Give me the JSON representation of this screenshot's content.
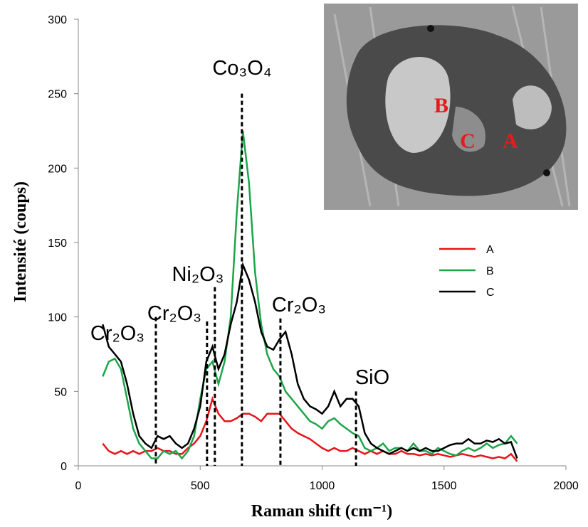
{
  "chart_data": {
    "type": "line",
    "xlabel": "Raman shift (cm⁻¹)",
    "ylabel": "Intensité (coups)",
    "xlim": [
      0,
      2000
    ],
    "xticks": [
      0,
      500,
      1000,
      1500,
      2000
    ],
    "ylim": [
      0,
      300
    ],
    "yticks": [
      0,
      50,
      100,
      150,
      200,
      250,
      300
    ],
    "legend": "right",
    "x": [
      100,
      125,
      150,
      175,
      200,
      225,
      250,
      275,
      300,
      325,
      350,
      375,
      400,
      425,
      450,
      475,
      500,
      525,
      550,
      575,
      600,
      625,
      650,
      675,
      700,
      725,
      750,
      775,
      800,
      825,
      850,
      875,
      900,
      925,
      950,
      975,
      1000,
      1025,
      1050,
      1075,
      1100,
      1125,
      1150,
      1175,
      1200,
      1225,
      1250,
      1275,
      1300,
      1325,
      1350,
      1375,
      1400,
      1425,
      1450,
      1475,
      1500,
      1525,
      1550,
      1575,
      1600,
      1625,
      1650,
      1675,
      1700,
      1725,
      1750,
      1775,
      1800
    ],
    "series": [
      {
        "name": "A",
        "color": "#e8141b",
        "values": [
          15,
          10,
          8,
          10,
          8,
          10,
          8,
          10,
          10,
          12,
          10,
          10,
          8,
          8,
          12,
          15,
          20,
          30,
          45,
          35,
          30,
          30,
          32,
          35,
          35,
          33,
          30,
          35,
          35,
          35,
          30,
          25,
          22,
          20,
          18,
          15,
          12,
          10,
          12,
          10,
          10,
          12,
          10,
          8,
          10,
          8,
          10,
          8,
          8,
          10,
          8,
          8,
          7,
          8,
          7,
          8,
          7,
          6,
          7,
          8,
          7,
          6,
          7,
          6,
          5,
          6,
          5,
          8,
          3
        ]
      },
      {
        "name": "B",
        "color": "#1ea44a",
        "values": [
          60,
          70,
          72,
          65,
          45,
          25,
          15,
          10,
          5,
          5,
          10,
          8,
          10,
          5,
          10,
          20,
          45,
          65,
          70,
          55,
          70,
          100,
          170,
          225,
          190,
          130,
          95,
          75,
          65,
          60,
          50,
          45,
          40,
          35,
          30,
          28,
          25,
          30,
          32,
          28,
          25,
          22,
          20,
          12,
          10,
          12,
          15,
          10,
          12,
          12,
          10,
          15,
          10,
          10,
          8,
          12,
          10,
          8,
          7,
          10,
          12,
          10,
          12,
          15,
          12,
          14,
          15,
          20,
          15
        ]
      },
      {
        "name": "C",
        "color": "#000000",
        "values": [
          95,
          80,
          75,
          70,
          55,
          35,
          20,
          15,
          12,
          20,
          18,
          20,
          15,
          12,
          15,
          25,
          40,
          70,
          80,
          65,
          75,
          95,
          110,
          135,
          125,
          110,
          90,
          80,
          78,
          85,
          90,
          75,
          55,
          45,
          40,
          38,
          35,
          40,
          50,
          40,
          45,
          45,
          40,
          22,
          15,
          12,
          10,
          8,
          10,
          12,
          10,
          12,
          10,
          12,
          10,
          10,
          12,
          14,
          15,
          15,
          18,
          15,
          15,
          17,
          16,
          18,
          15,
          16,
          5
        ]
      }
    ],
    "annotations": [
      {
        "text": "Cr₂O₃",
        "x": 318,
        "y": 100
      },
      {
        "text": "Cr₂O₃",
        "x": 528,
        "y": 97
      },
      {
        "text": "Ni₂O₃",
        "x": 560,
        "y": 120
      },
      {
        "text": "Co₃O₄",
        "x": 671,
        "y": 250
      },
      {
        "text": "Cr₂O₃",
        "x": 829,
        "y": 99
      },
      {
        "text": "SiO",
        "x": 1139,
        "y": 50
      }
    ]
  },
  "inset": {
    "labels": [
      "B",
      "C",
      "A"
    ]
  }
}
